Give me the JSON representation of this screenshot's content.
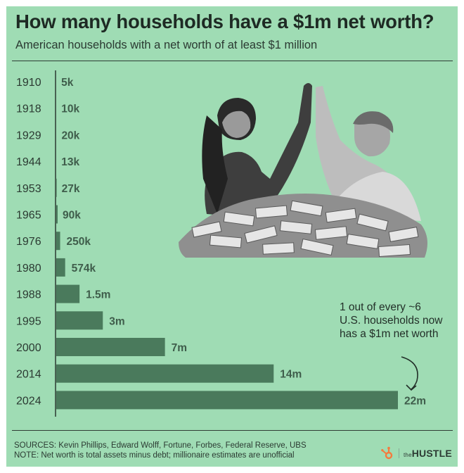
{
  "header": {
    "title": "How many households have a $1m net worth?",
    "subtitle": "American households with a net worth of at least $1 million"
  },
  "chart_data": {
    "type": "bar",
    "orientation": "horizontal",
    "title": "How many households have a $1m net worth?",
    "subtitle": "American households with a net worth of at least $1 million",
    "unit": "households",
    "categories": [
      "1910",
      "1918",
      "1929",
      "1944",
      "1953",
      "1965",
      "1976",
      "1980",
      "1988",
      "1995",
      "2000",
      "2014",
      "2024"
    ],
    "values": [
      5000,
      10000,
      20000,
      13000,
      27000,
      90000,
      250000,
      574000,
      1500000,
      3000000,
      7000000,
      14000000,
      22000000
    ],
    "data_labels": [
      "5k",
      "10k",
      "20k",
      "13k",
      "27k",
      "90k",
      "250k",
      "574k",
      "1.5m",
      "3m",
      "7m",
      "14m",
      "22m"
    ],
    "xlim": [
      0,
      22000000
    ],
    "bar_color": "#4a7a5c",
    "grid": false,
    "annotation": "1 out of every ~6 U.S. households now has a $1m net worth"
  },
  "annotation": {
    "text": "1 out of every ~6 U.S. households now has a $1m net worth"
  },
  "footer": {
    "sources": "SOURCES: Kevin Phillips, Edward Wolff, Fortune, Forbes, Federal Reserve, UBS",
    "note": "NOTE: Net worth is total assets minus debt; millionaire estimates are unofficial"
  },
  "brand": {
    "icon": "hubspot-sprocket-icon",
    "prefix": "the",
    "name": "HUSTLE",
    "icon_color": "#f57a3d"
  },
  "photo": {
    "description_icon": "people-high-five-money-pile-photo"
  }
}
